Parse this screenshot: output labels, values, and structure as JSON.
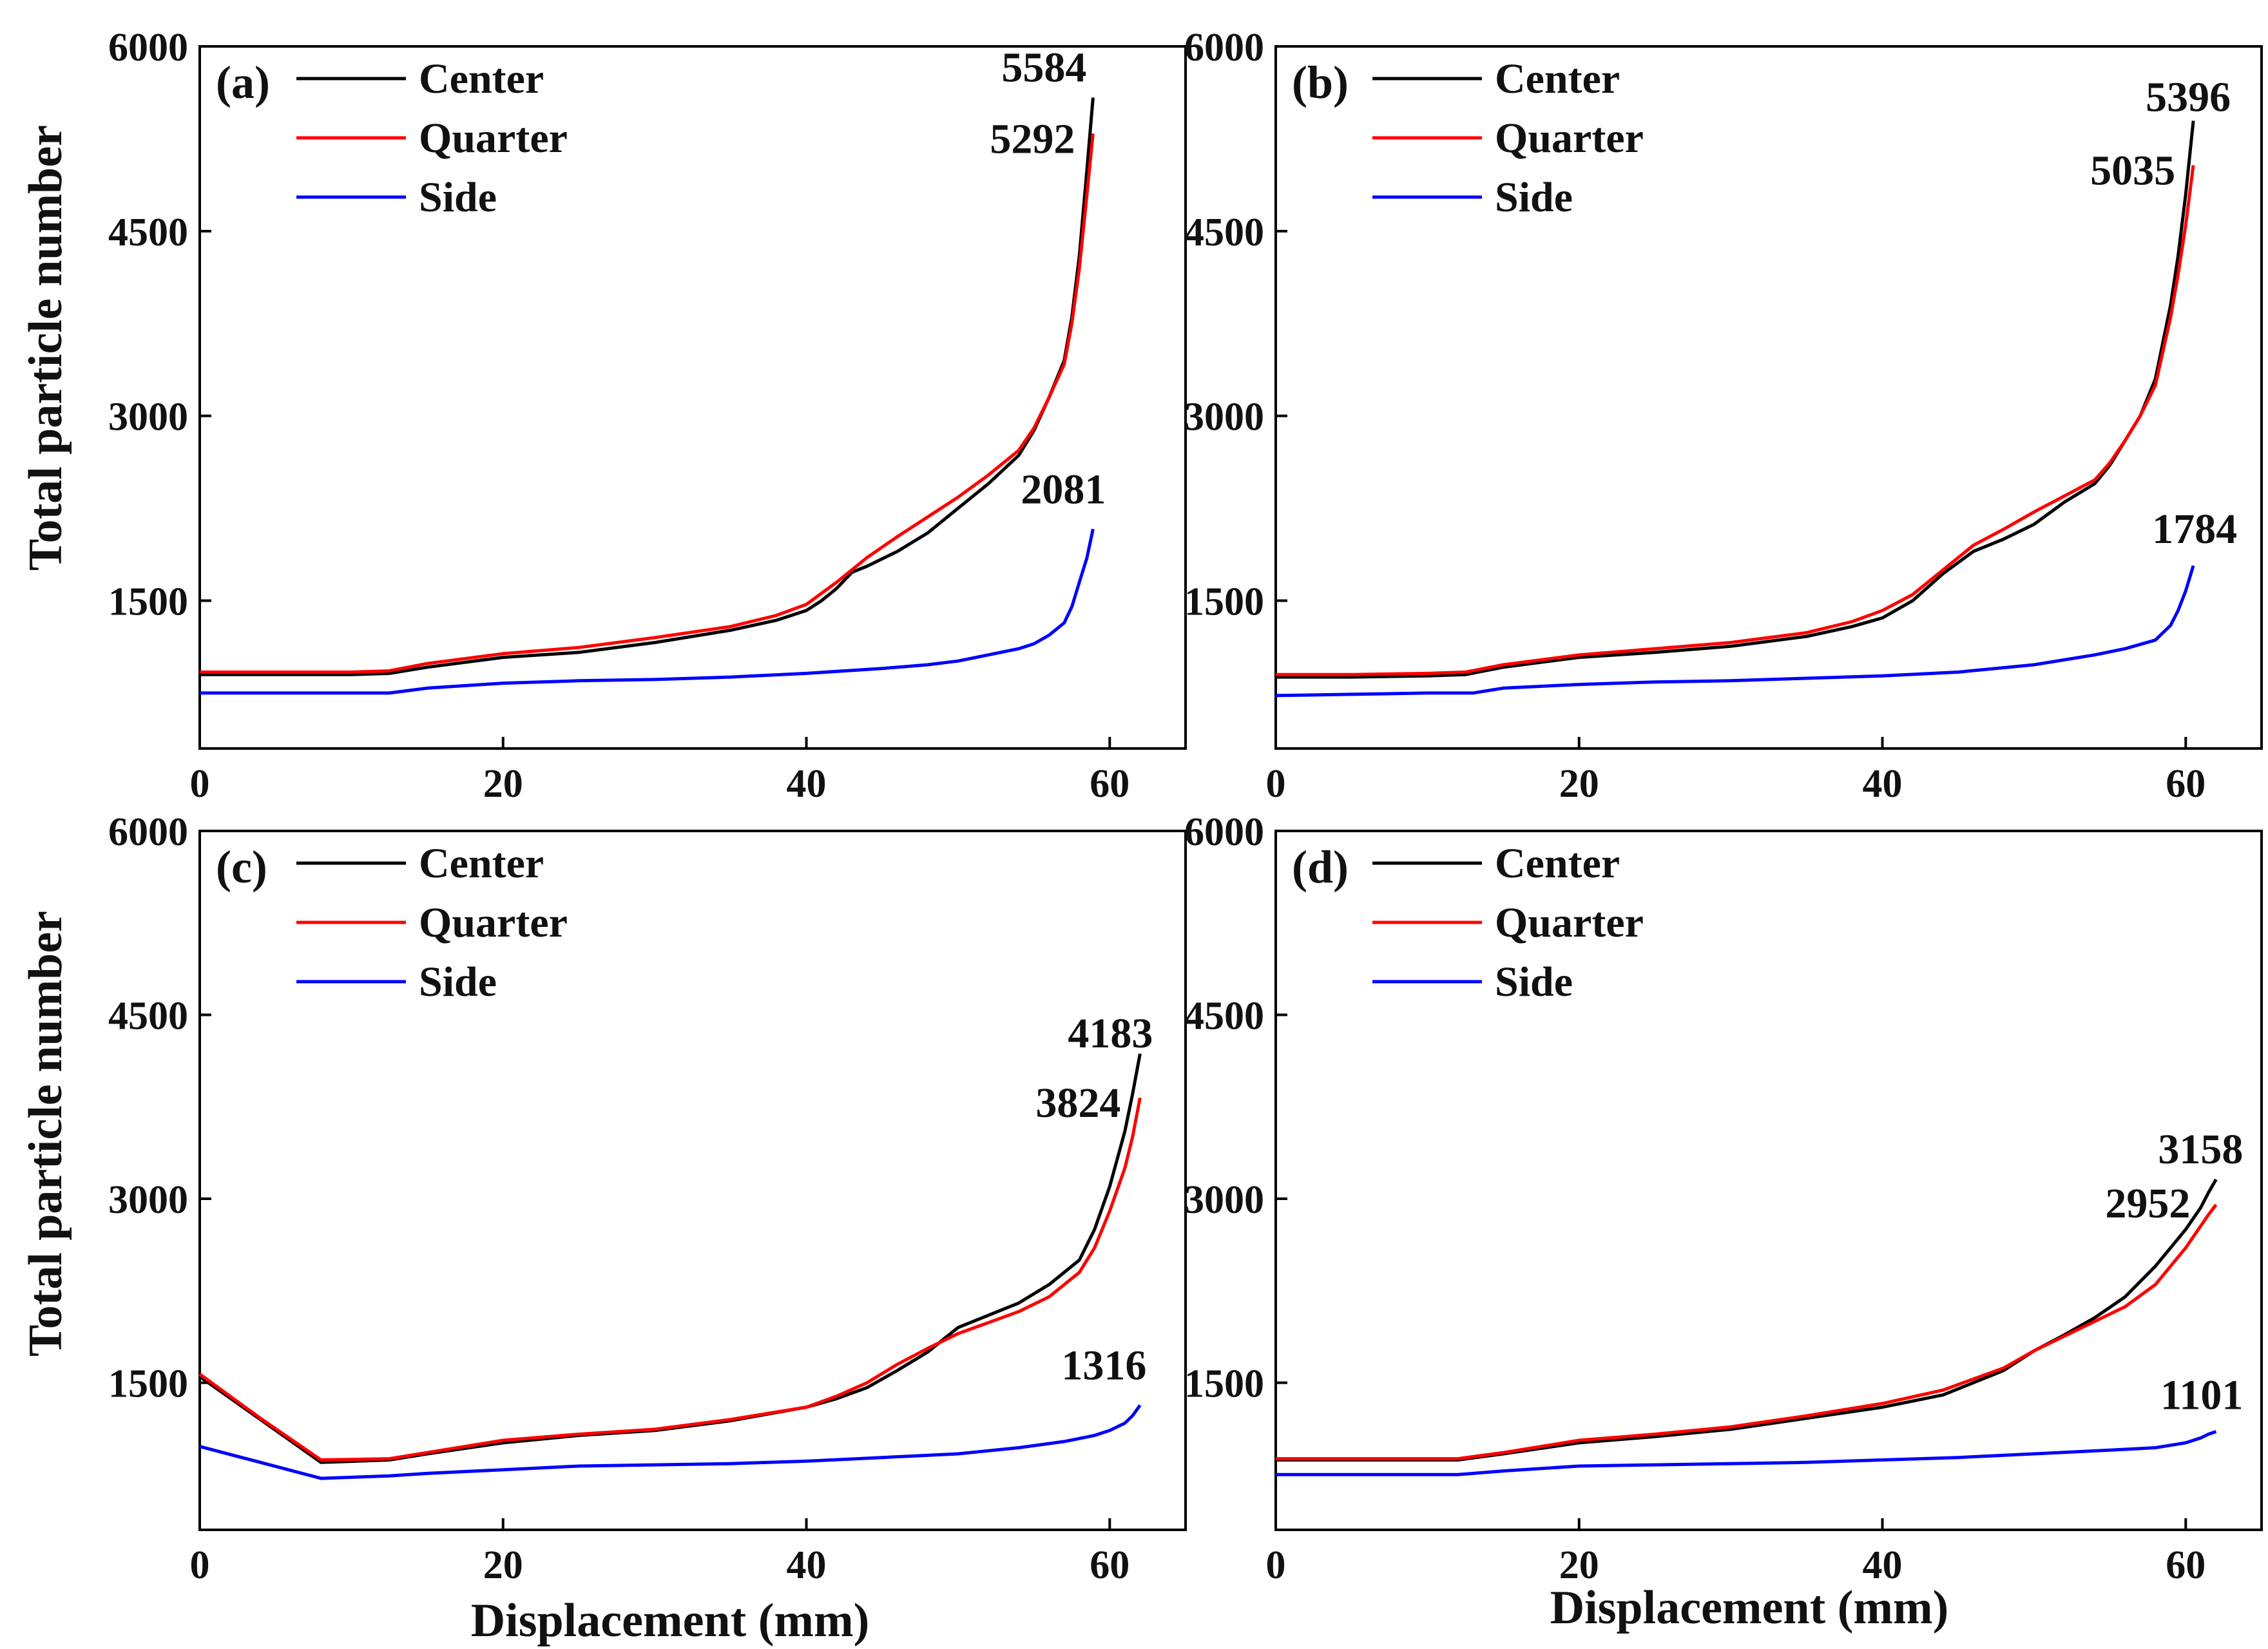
{
  "figure": {
    "shared_ylabel": "Total particle number",
    "shared_xlabel": "Displacement (mm)"
  },
  "colors": {
    "Center": "#000000",
    "Quarter": "#ff0000",
    "Side": "#0000ff"
  },
  "chart_data": [
    {
      "panel": "(a)",
      "type": "line",
      "xlabel": "",
      "ylabel": "Total particle number",
      "xlim": [
        0,
        65
      ],
      "ylim": [
        300,
        6000
      ],
      "xticks": [
        0,
        20,
        40,
        60
      ],
      "yticks": [
        1500,
        3000,
        4500,
        6000
      ],
      "legend": [
        "Center",
        "Quarter",
        "Side"
      ],
      "series": [
        {
          "name": "Center",
          "end_label": "5584",
          "x": [
            0,
            5,
            10,
            12.5,
            15,
            20,
            25,
            30,
            35,
            38,
            40,
            41,
            42,
            43,
            44,
            46,
            48,
            50,
            52,
            54,
            55,
            56,
            57,
            57.5,
            58,
            58.5,
            58.9
          ],
          "y": [
            900,
            900,
            900,
            910,
            960,
            1040,
            1080,
            1160,
            1260,
            1340,
            1420,
            1500,
            1600,
            1730,
            1780,
            1900,
            2050,
            2250,
            2450,
            2680,
            2880,
            3150,
            3450,
            3800,
            4300,
            5000,
            5584
          ]
        },
        {
          "name": "Quarter",
          "end_label": "5292",
          "x": [
            0,
            5,
            10,
            12.5,
            15,
            20,
            25,
            30,
            35,
            38,
            40,
            42,
            44,
            46,
            48,
            50,
            52,
            54,
            55,
            56,
            57,
            57.5,
            58,
            58.5,
            58.9
          ],
          "y": [
            920,
            920,
            920,
            930,
            990,
            1070,
            1120,
            1200,
            1290,
            1380,
            1470,
            1650,
            1850,
            2020,
            2180,
            2340,
            2520,
            2720,
            2900,
            3150,
            3420,
            3750,
            4200,
            4800,
            5292
          ]
        },
        {
          "name": "Side",
          "end_label": "2081",
          "x": [
            0,
            5,
            10,
            12.5,
            15,
            20,
            25,
            30,
            35,
            40,
            45,
            48,
            50,
            52,
            54,
            55,
            56,
            57,
            57.5,
            58,
            58.5,
            58.9
          ],
          "y": [
            750,
            750,
            750,
            750,
            790,
            830,
            850,
            860,
            880,
            910,
            950,
            980,
            1010,
            1060,
            1110,
            1150,
            1220,
            1320,
            1450,
            1650,
            1850,
            2081
          ]
        }
      ]
    },
    {
      "panel": "(b)",
      "type": "line",
      "xlabel": "",
      "ylabel": "",
      "xlim": [
        0,
        65
      ],
      "ylim": [
        300,
        6000
      ],
      "xticks": [
        0,
        20,
        40,
        60
      ],
      "yticks": [
        1500,
        3000,
        4500,
        6000
      ],
      "legend": [
        "Center",
        "Quarter",
        "Side"
      ],
      "series": [
        {
          "name": "Center",
          "end_label": "5396",
          "x": [
            0,
            5,
            10,
            12.5,
            15,
            20,
            25,
            30,
            35,
            38,
            40,
            42,
            44,
            46,
            48,
            50,
            52,
            54,
            55,
            56,
            57,
            58,
            59,
            59.5,
            60,
            60.5
          ],
          "y": [
            880,
            880,
            890,
            900,
            960,
            1040,
            1080,
            1130,
            1210,
            1290,
            1360,
            1500,
            1720,
            1900,
            2000,
            2120,
            2300,
            2450,
            2600,
            2800,
            3000,
            3300,
            3900,
            4300,
            4800,
            5396
          ]
        },
        {
          "name": "Quarter",
          "end_label": "5035",
          "x": [
            0,
            5,
            10,
            12.5,
            15,
            20,
            25,
            30,
            35,
            38,
            40,
            42,
            44,
            46,
            48,
            50,
            52,
            54,
            55,
            56,
            57,
            58,
            59,
            59.5,
            60,
            60.5
          ],
          "y": [
            900,
            900,
            910,
            920,
            980,
            1060,
            1110,
            1160,
            1240,
            1330,
            1420,
            1550,
            1750,
            1950,
            2080,
            2220,
            2350,
            2480,
            2620,
            2800,
            3000,
            3250,
            3800,
            4150,
            4550,
            5035
          ]
        },
        {
          "name": "Side",
          "end_label": "1784",
          "x": [
            0,
            5,
            10,
            13,
            15,
            20,
            25,
            30,
            35,
            40,
            45,
            50,
            54,
            56,
            58,
            59,
            59.5,
            60,
            60.5
          ],
          "y": [
            730,
            740,
            750,
            750,
            790,
            820,
            840,
            850,
            870,
            890,
            920,
            980,
            1060,
            1110,
            1180,
            1300,
            1420,
            1580,
            1784
          ]
        }
      ]
    },
    {
      "panel": "(c)",
      "type": "line",
      "xlabel": "Displacement (mm)",
      "ylabel": "Total particle number",
      "xlim": [
        0,
        65
      ],
      "ylim": [
        300,
        6000
      ],
      "xticks": [
        0,
        20,
        40,
        60
      ],
      "yticks": [
        1500,
        3000,
        4500,
        6000
      ],
      "legend": [
        "Center",
        "Quarter",
        "Side"
      ],
      "series": [
        {
          "name": "Center",
          "end_label": "4183",
          "x": [
            0,
            4,
            8,
            12.5,
            15,
            20,
            25,
            30,
            35,
            40,
            42,
            44,
            46,
            48,
            50,
            52,
            54,
            56,
            58,
            59,
            60,
            61,
            61.5,
            62
          ],
          "y": [
            1550,
            1200,
            850,
            870,
            920,
            1010,
            1070,
            1110,
            1190,
            1300,
            1370,
            1460,
            1600,
            1750,
            1950,
            2050,
            2150,
            2300,
            2500,
            2750,
            3100,
            3550,
            3850,
            4183
          ]
        },
        {
          "name": "Quarter",
          "end_label": "3824",
          "x": [
            0,
            4,
            8,
            12.5,
            15,
            20,
            25,
            30,
            35,
            40,
            42,
            44,
            46,
            48,
            50,
            52,
            54,
            56,
            58,
            59,
            60,
            61,
            61.5,
            62
          ],
          "y": [
            1570,
            1210,
            870,
            880,
            930,
            1030,
            1080,
            1120,
            1200,
            1300,
            1390,
            1500,
            1650,
            1780,
            1900,
            1990,
            2080,
            2200,
            2400,
            2600,
            2900,
            3250,
            3500,
            3824
          ]
        },
        {
          "name": "Side",
          "end_label": "1316",
          "x": [
            0,
            4,
            8,
            12.5,
            15,
            20,
            25,
            30,
            35,
            40,
            45,
            50,
            54,
            57,
            59,
            60,
            61,
            61.5,
            62
          ],
          "y": [
            980,
            850,
            720,
            740,
            760,
            790,
            820,
            830,
            840,
            860,
            890,
            920,
            970,
            1020,
            1070,
            1110,
            1170,
            1230,
            1316
          ]
        }
      ]
    },
    {
      "panel": "(d)",
      "type": "line",
      "xlabel": "Displacement (mm)",
      "ylabel": "",
      "xlim": [
        0,
        65
      ],
      "ylim": [
        300,
        6000
      ],
      "xticks": [
        0,
        20,
        40,
        60
      ],
      "yticks": [
        1500,
        3000,
        4500,
        6000
      ],
      "legend": [
        "Center",
        "Quarter",
        "Side"
      ],
      "series": [
        {
          "name": "Center",
          "end_label": "3158",
          "x": [
            0,
            5,
            10,
            12,
            15,
            20,
            25,
            30,
            35,
            40,
            44,
            48,
            50,
            52,
            54,
            56,
            58,
            59,
            60,
            61,
            61.5,
            62
          ],
          "y": [
            870,
            870,
            870,
            870,
            920,
            1010,
            1060,
            1120,
            1210,
            1300,
            1400,
            1600,
            1760,
            1890,
            2030,
            2200,
            2450,
            2600,
            2750,
            2930,
            3050,
            3158
          ]
        },
        {
          "name": "Quarter",
          "end_label": "2952",
          "x": [
            0,
            5,
            10,
            12,
            15,
            20,
            25,
            30,
            35,
            40,
            44,
            48,
            50,
            52,
            54,
            56,
            58,
            59,
            60,
            61,
            61.5,
            62
          ],
          "y": [
            880,
            880,
            880,
            880,
            930,
            1030,
            1080,
            1140,
            1230,
            1330,
            1440,
            1620,
            1760,
            1880,
            2000,
            2120,
            2300,
            2450,
            2600,
            2780,
            2870,
            2952
          ]
        },
        {
          "name": "Side",
          "end_label": "1101",
          "x": [
            0,
            5,
            10,
            12,
            15,
            20,
            25,
            30,
            35,
            40,
            45,
            50,
            55,
            58,
            59,
            60,
            61,
            61.5,
            62
          ],
          "y": [
            750,
            750,
            750,
            750,
            780,
            820,
            830,
            840,
            850,
            870,
            890,
            920,
            950,
            970,
            990,
            1010,
            1050,
            1080,
            1101
          ]
        }
      ]
    }
  ]
}
